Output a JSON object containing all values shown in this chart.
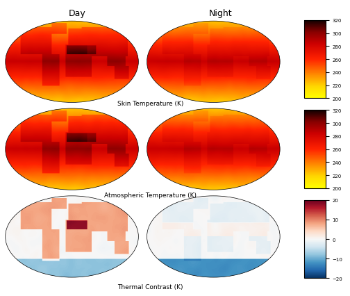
{
  "title_day": "Day",
  "title_night": "Night",
  "label_row1": "Skin Temperature (K)",
  "label_row2": "Atmospheric Temperature (K)",
  "label_row3": "Thermal Contrast (K)",
  "cmap_temp": "hot_r_custom",
  "cmap_diff": "RdBu_r",
  "temp_vmin": 200,
  "temp_vmax": 320,
  "diff_vmin": -20,
  "diff_vmax": 20,
  "temp_ticks": [
    200,
    220,
    240,
    260,
    280,
    300,
    320
  ],
  "diff_ticks": [
    -20,
    -10,
    0,
    10,
    20
  ],
  "bg_color": "#ffffff",
  "ocean_color_temp": "#FFFF80",
  "land_hot_color": "#CC0000",
  "figsize": [
    5.04,
    4.27
  ],
  "dpi": 100
}
